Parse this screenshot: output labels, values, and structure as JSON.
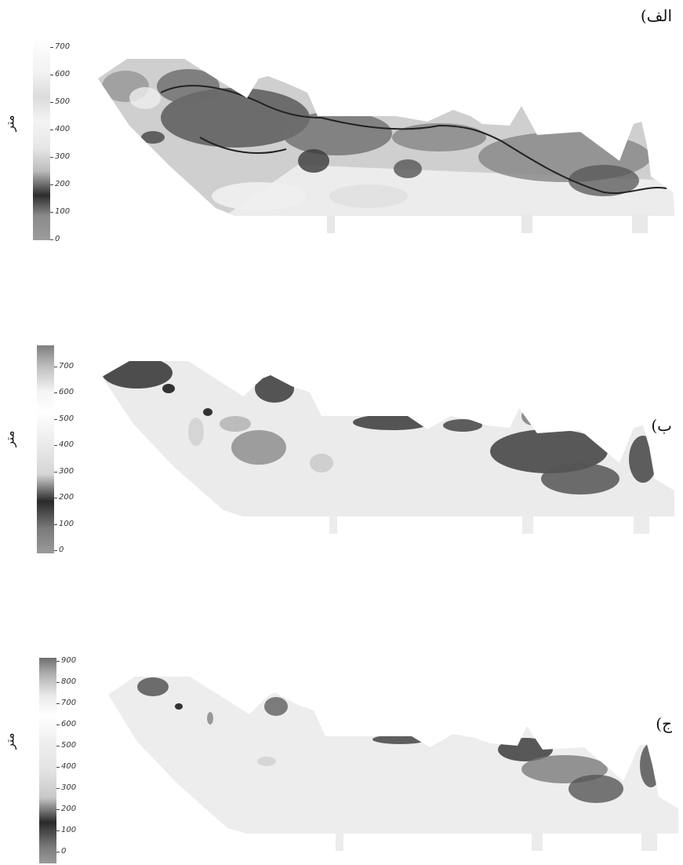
{
  "panels": [
    {
      "label": "الف)",
      "unit": "متر",
      "scale_ticks": [
        "700",
        "600",
        "500",
        "400",
        "300",
        "200",
        "100",
        "0"
      ]
    },
    {
      "label": "ب)",
      "unit": "متر",
      "scale_ticks": [
        "700",
        "600",
        "500",
        "400",
        "300",
        "200",
        "100",
        "0"
      ]
    },
    {
      "label": "ج)",
      "unit": "متر",
      "scale_ticks": [
        "900",
        "800",
        "700",
        "600",
        "500",
        "400",
        "300",
        "200",
        "100",
        "0"
      ]
    }
  ]
}
